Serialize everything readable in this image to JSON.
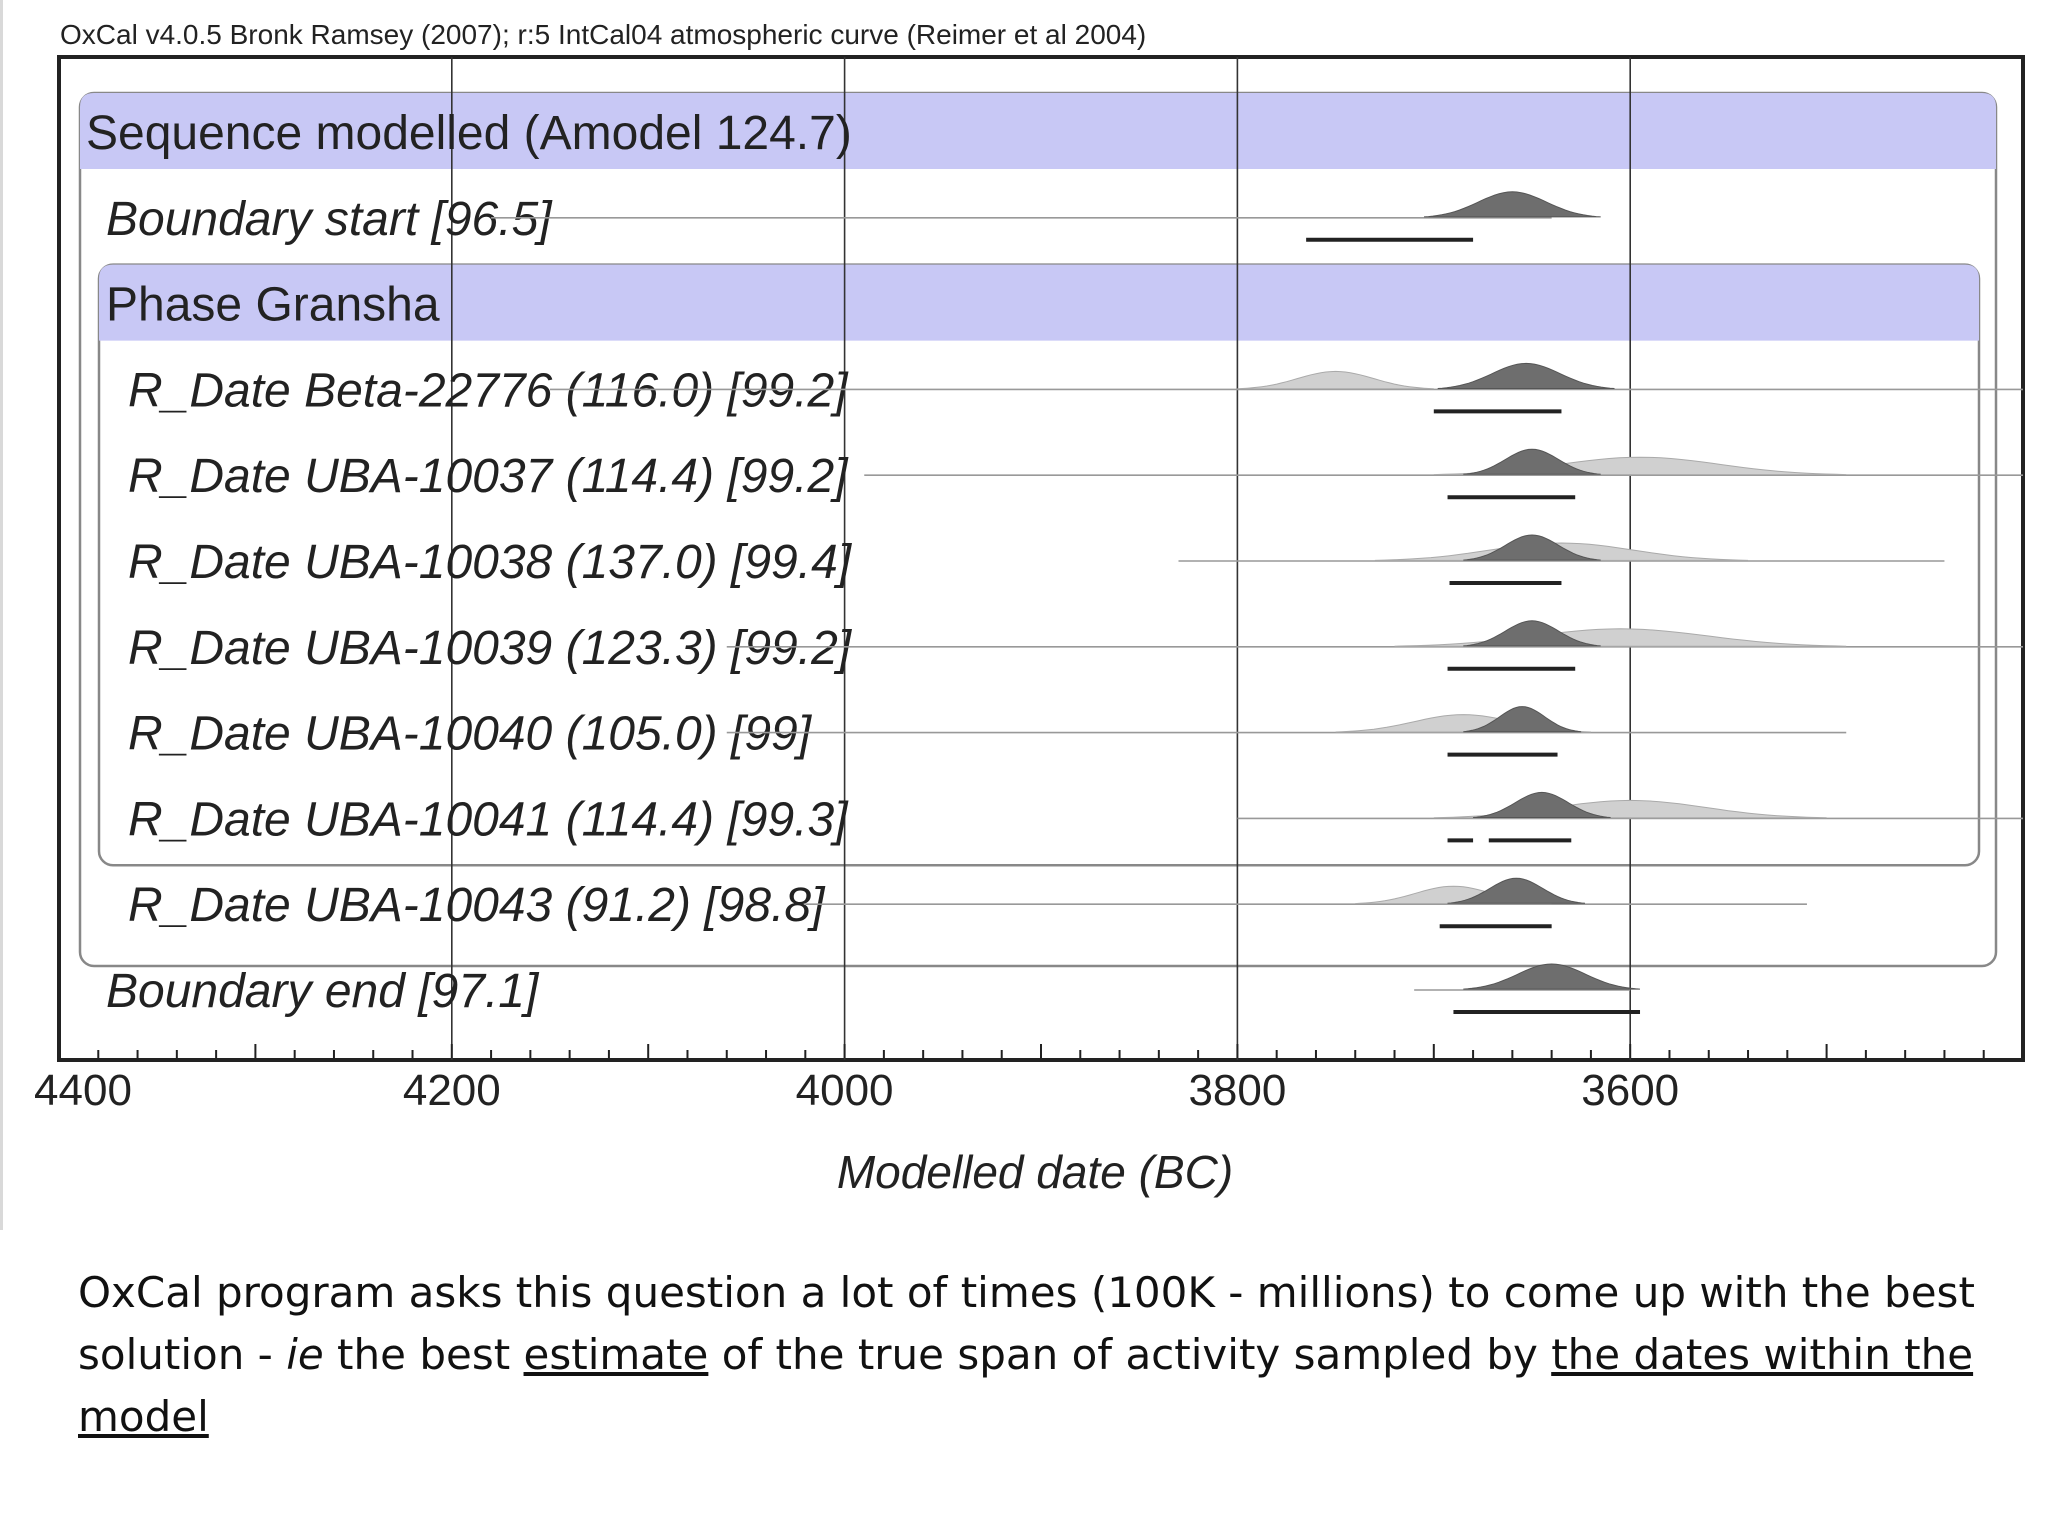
{
  "chart_data": {
    "type": "area",
    "header": "OxCal v4.0.5 Bronk Ramsey (2007); r:5 IntCal04 atmospheric curve (Reimer et al 2004)",
    "xlabel": "Modelled date (BC)",
    "xlim": [
      4400,
      3400
    ],
    "x_ticks": [
      "4400",
      "4200",
      "4000",
      "3800",
      "3600"
    ],
    "x_tick_values": [
      4400,
      4200,
      4000,
      3800,
      3600
    ],
    "groups": [
      {
        "label": "Sequence modelled (Amodel 124.7)",
        "level": 0,
        "start_row": 0,
        "end_row": 9
      },
      {
        "label": "Phase Gransha",
        "level": 1,
        "start_row": 2,
        "end_row": 8
      }
    ],
    "rows": [
      {
        "label": "Sequence modelled (Amodel 124.7)",
        "kind": "header",
        "italic": false
      },
      {
        "label": "Boundary start [96.5]",
        "kind": "boundary",
        "italic": true,
        "line": [
          4180,
          3640
        ],
        "peak": 3660,
        "posterior_range": [
          3740,
          3650
        ],
        "hpd": [
          [
            3765,
            3680
          ]
        ]
      },
      {
        "label": "Phase Gransha",
        "kind": "header",
        "italic": false
      },
      {
        "label": "R_Date Beta-22776 (116.0) [99.2]",
        "kind": "date",
        "italic": true,
        "line": [
          4150,
          3400
        ],
        "peak": 3653,
        "prior_range": [
          3800,
          3700
        ],
        "posterior_range": [
          3700,
          3610
        ],
        "hpd": [
          [
            3700,
            3635
          ]
        ]
      },
      {
        "label": "R_Date UBA-10037 (114.4) [99.2]",
        "kind": "date",
        "italic": true,
        "line": [
          3990,
          3400
        ],
        "peak": 3650,
        "prior_range": [
          3700,
          3490
        ],
        "posterior_range": [
          3690,
          3620
        ],
        "hpd": [
          [
            3693,
            3628
          ]
        ]
      },
      {
        "label": "R_Date UBA-10038 (137.0) [99.4]",
        "kind": "date",
        "italic": true,
        "line": [
          3830,
          3440
        ],
        "peak": 3650,
        "prior_range": [
          3730,
          3540
        ],
        "posterior_range": [
          3690,
          3620
        ],
        "hpd": [
          [
            3692,
            3635
          ]
        ]
      },
      {
        "label": "R_Date UBA-10039 (123.3) [99.2]",
        "kind": "date",
        "italic": true,
        "line": [
          4060,
          3400
        ],
        "peak": 3650,
        "prior_range": [
          3720,
          3490
        ],
        "posterior_range": [
          3690,
          3620
        ],
        "hpd": [
          [
            3693,
            3628
          ]
        ]
      },
      {
        "label": "R_Date UBA-10040 (105.0) [99]",
        "kind": "date",
        "italic": true,
        "line": [
          4060,
          3490
        ],
        "peak": 3655,
        "prior_range": [
          3750,
          3620
        ],
        "posterior_range": [
          3690,
          3630
        ],
        "hpd": [
          [
            3693,
            3637
          ]
        ]
      },
      {
        "label": "R_Date UBA-10041 (114.4) [99.3]",
        "kind": "date",
        "italic": true,
        "line": [
          3800,
          3400
        ],
        "peak": 3645,
        "prior_range": [
          3700,
          3500
        ],
        "posterior_range": [
          3690,
          3620
        ],
        "hpd": [
          [
            3693,
            3680
          ],
          [
            3672,
            3630
          ]
        ]
      },
      {
        "label": "R_Date UBA-10043 (91.2) [98.8]",
        "kind": "date",
        "italic": true,
        "line": [
          4020,
          3510
        ],
        "peak": 3658,
        "prior_range": [
          3740,
          3640
        ],
        "posterior_range": [
          3700,
          3630
        ],
        "hpd": [
          [
            3697,
            3640
          ]
        ]
      },
      {
        "label": "Boundary end [97.1]",
        "kind": "boundary",
        "italic": true,
        "line": [
          3710,
          3600
        ],
        "peak": 3640,
        "posterior_range": [
          3690,
          3600
        ],
        "hpd": [
          [
            3690,
            3595
          ]
        ]
      }
    ],
    "colors": {
      "group_band": "#c8c8f5",
      "frame": "#222222",
      "posterior": "#6e6e6e",
      "prior": "#d0d0d0",
      "text": "#222222"
    }
  },
  "caption": {
    "line1": "OxCal program asks this question a lot of times (100K - millions) to come up with the best",
    "line2_a": "solution - ",
    "line2_ie": "ie",
    "line2_b": " the best ",
    "line2_estimate": "estimate",
    "line2_c": " of the true span of activity sampled by ",
    "line2_dates": "the dates within the",
    "line3_model": "model"
  }
}
